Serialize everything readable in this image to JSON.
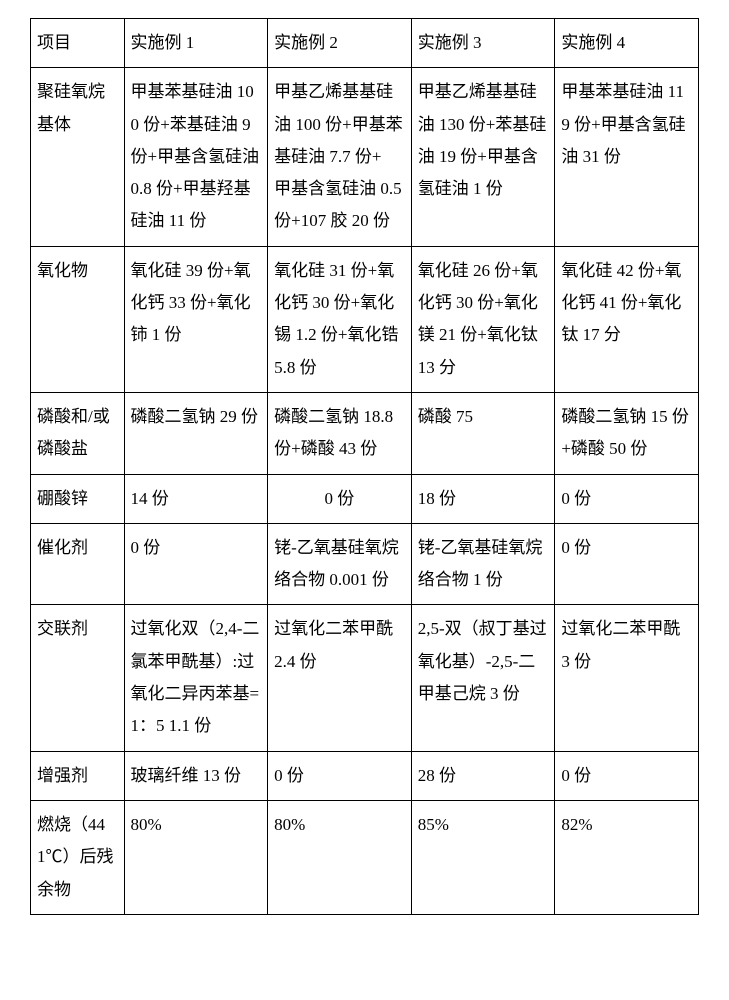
{
  "table": {
    "columns": [
      "项目",
      "实施例 1",
      "实施例 2",
      "实施例 3",
      "实施例 4"
    ],
    "rows": [
      {
        "label": "聚硅氧烷基体",
        "cells": [
          "甲基苯基硅油 100 份+苯基硅油 9 份+甲基含氢硅油 0.8 份+甲基羟基硅油 11 份",
          "甲基乙烯基基硅油 100 份+甲基苯基硅油 7.7 份+\n甲基含氢硅油 0.5 份+107 胶 20 份",
          "甲基乙烯基基硅油 130 份+苯基硅油 19 份+甲基含氢硅油 1 份",
          "甲基苯基硅油 119 份+甲基含氢硅油 31 份"
        ]
      },
      {
        "label": "氧化物",
        "cells": [
          "氧化硅 39 份+氧化钙 33 份+氧化铈 1 份",
          "氧化硅 31 份+氧化钙 30 份+氧化锡 1.2 份+氧化锆 5.8 份",
          "氧化硅 26 份+氧化钙 30 份+氧化镁 21 份+氧化钛 13 分",
          "氧化硅 42 份+氧化钙 41 份+氧化钛 17 分"
        ]
      },
      {
        "label": "磷酸和/或磷酸盐",
        "cells": [
          "磷酸二氢钠 29 份",
          "磷酸二氢钠 18.8 份+磷酸 43 份",
          "磷酸 75",
          "磷酸二氢钠 15 份+磷酸 50 份"
        ]
      },
      {
        "label": "硼酸锌",
        "cells": [
          "14 份",
          "0 份",
          "18 份",
          "0 份"
        ],
        "centered": [
          false,
          true,
          false,
          false
        ]
      },
      {
        "label": "催化剂",
        "cells": [
          "0 份",
          "铑-乙氧基硅氧烷络合物 0.001 份",
          "铑-乙氧基硅氧烷络合物 1 份",
          "0 份"
        ]
      },
      {
        "label": "交联剂",
        "cells": [
          "过氧化双（2,4-二氯苯甲酰基）:过氧化二异丙苯基=1：5 1.1 份",
          "过氧化二苯甲酰 2.4 份",
          "2,5-双（叔丁基过氧化基）-2,5-二甲基己烷 3 份",
          "过氧化二苯甲酰 3 份"
        ]
      },
      {
        "label": "增强剂",
        "cells": [
          "玻璃纤维 13 份",
          "0 份",
          "28 份",
          "0 份"
        ]
      },
      {
        "label": "燃烧（441℃）后残余物",
        "cells": [
          "80%",
          "80%",
          "85%",
          "82%"
        ]
      }
    ],
    "border_color": "#000000",
    "background_color": "#ffffff",
    "font_size": 17,
    "line_height": 1.9
  }
}
